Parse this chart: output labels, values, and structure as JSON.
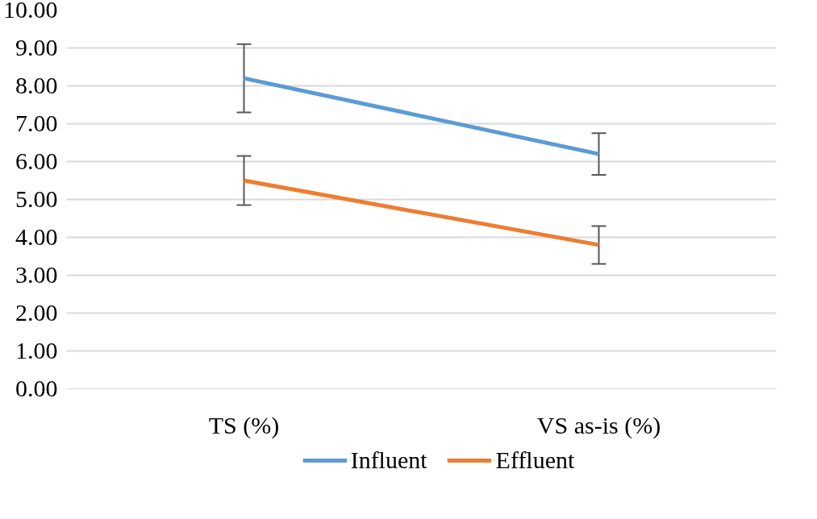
{
  "chart_data": {
    "type": "line",
    "categories": [
      "TS (%)",
      "VS as-is (%)"
    ],
    "series": [
      {
        "name": "Influent",
        "color": "#5b9bd5",
        "values": [
          8.2,
          6.2
        ],
        "errors": [
          0.9,
          0.55
        ]
      },
      {
        "name": "Effluent",
        "color": "#ed7d31",
        "values": [
          5.5,
          3.8
        ],
        "errors": [
          0.65,
          0.5
        ]
      }
    ],
    "ylim": [
      0,
      10
    ],
    "yticks": [
      {
        "value": 0,
        "label": "0.00"
      },
      {
        "value": 1,
        "label": "1.00"
      },
      {
        "value": 2,
        "label": "2.00"
      },
      {
        "value": 3,
        "label": "3.00"
      },
      {
        "value": 4,
        "label": "4.00"
      },
      {
        "value": 5,
        "label": "5.00"
      },
      {
        "value": 6,
        "label": "6.00"
      },
      {
        "value": 7,
        "label": "7.00"
      },
      {
        "value": 8,
        "label": "8.00"
      },
      {
        "value": 9,
        "label": "9.00"
      },
      {
        "value": 10,
        "label": "10.00"
      }
    ],
    "grid": "y",
    "legend": "bottom",
    "marker": "none",
    "line_style": "solid"
  }
}
